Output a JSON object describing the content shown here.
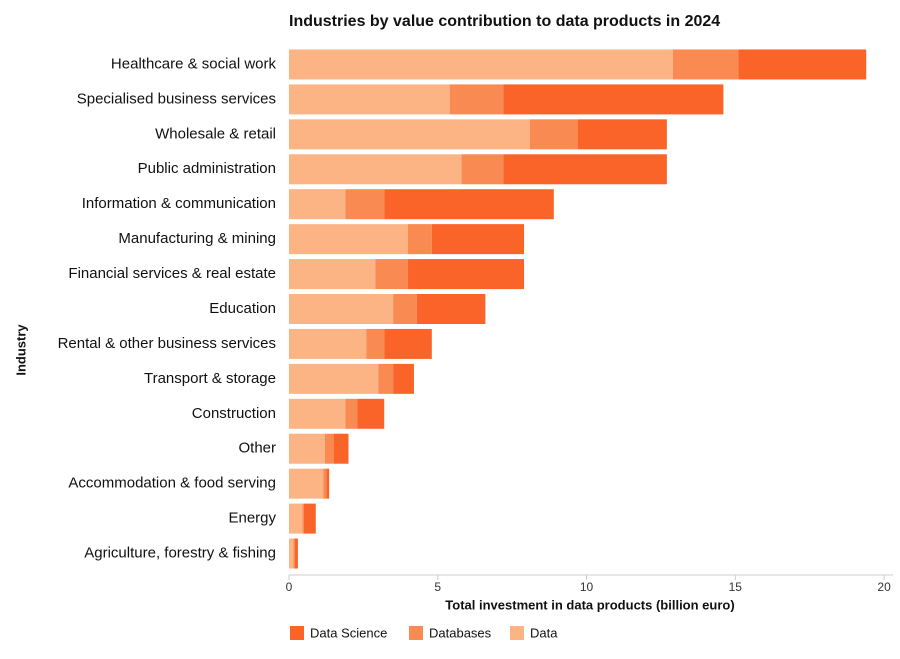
{
  "chart_data": {
    "type": "stacked-barh",
    "title": "Industries by value contribution to data products in 2024",
    "x_label": "Total investment in data products (billion euro)",
    "y_label": "Industry",
    "categories": [
      "Healthcare & social work",
      "Specialised business services",
      "Wholesale & retail",
      "Public administration",
      "Information & communication",
      "Manufacturing & mining",
      "Financial services & real estate",
      "Education",
      "Rental & other business services",
      "Transport & storage",
      "Construction",
      "Other",
      "Accommodation & food serving",
      "Energy",
      "Agriculture, forestry & fishing"
    ],
    "series": [
      {
        "name": "Data Science",
        "color": "#fa6428",
        "values": [
          4.3,
          7.4,
          3.0,
          5.5,
          5.7,
          3.1,
          3.9,
          2.3,
          1.6,
          0.7,
          0.9,
          0.5,
          0.1,
          0.4,
          0.1
        ]
      },
      {
        "name": "Databases",
        "color": "#f98a52",
        "values": [
          2.2,
          1.8,
          1.6,
          1.4,
          1.3,
          0.8,
          1.1,
          0.8,
          0.6,
          0.5,
          0.4,
          0.3,
          0.1,
          0.05,
          0.05
        ]
      },
      {
        "name": "Data",
        "color": "#fdb485",
        "values": [
          12.9,
          5.4,
          8.1,
          5.8,
          1.9,
          4.0,
          2.9,
          3.5,
          2.6,
          3.0,
          1.9,
          1.2,
          1.15,
          0.45,
          0.15
        ]
      }
    ],
    "xlim": [
      0,
      20.3
    ],
    "xticks": [
      0,
      5,
      10,
      15,
      20
    ]
  }
}
